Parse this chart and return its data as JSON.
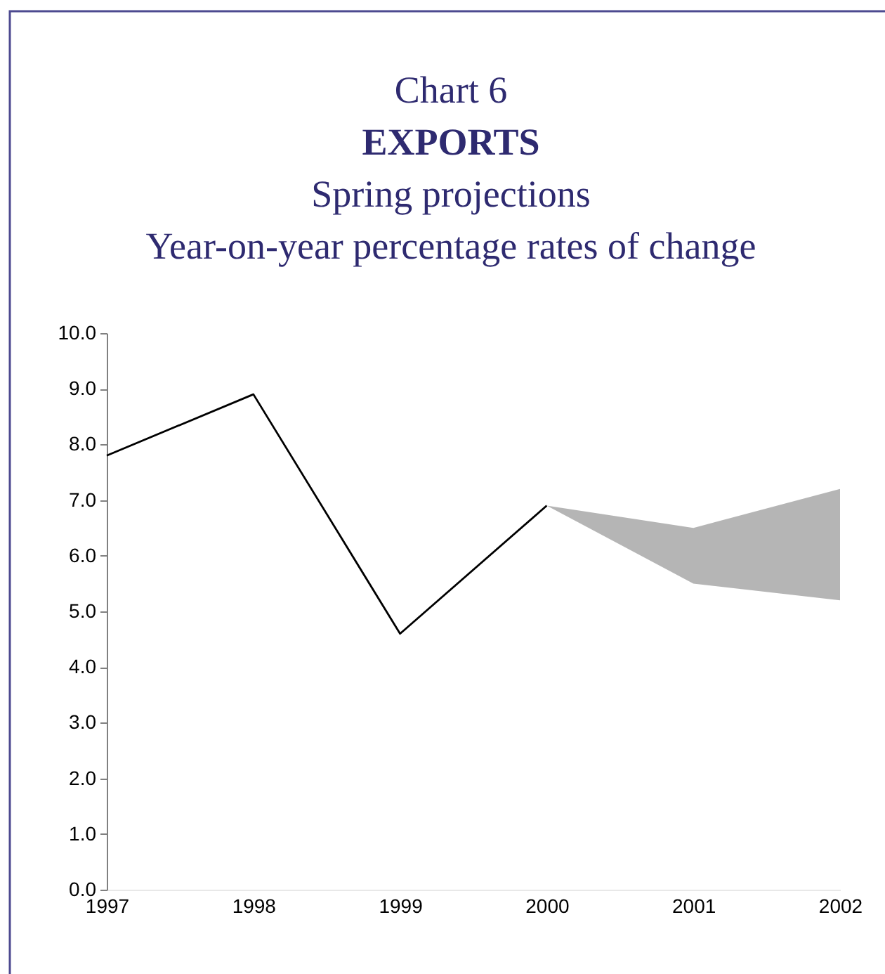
{
  "chart_data": {
    "type": "line",
    "annotations": [
      "Chart 6"
    ],
    "title": "EXPORTS",
    "subtitle": "Spring projections",
    "ylabel": "Year-on-year percentage rates of change",
    "categories": [
      "1997",
      "1998",
      "1999",
      "2000",
      "2001",
      "2002"
    ],
    "series": [
      {
        "color": "#000000",
        "values": [
          7.8,
          8.9,
          4.6,
          6.9,
          null,
          null
        ],
        "lower": [
          null,
          null,
          null,
          6.9,
          5.5,
          5.2
        ],
        "upper": [
          null,
          null,
          null,
          6.9,
          6.5,
          7.2
        ]
      }
    ],
    "ylim": [
      0,
      10
    ],
    "yticks": [
      {
        "value": 0,
        "label": "0.0"
      },
      {
        "value": 1,
        "label": "1.0"
      },
      {
        "value": 2,
        "label": "2.0"
      },
      {
        "value": 3,
        "label": "3.0"
      },
      {
        "value": 4,
        "label": "4.0"
      },
      {
        "value": 5,
        "label": "5.0"
      },
      {
        "value": 6,
        "label": "6.0"
      },
      {
        "value": 7,
        "label": "7.0"
      },
      {
        "value": 8,
        "label": "8.0"
      },
      {
        "value": 9,
        "label": "9.0"
      },
      {
        "value": 10,
        "label": "10.0"
      }
    ]
  }
}
